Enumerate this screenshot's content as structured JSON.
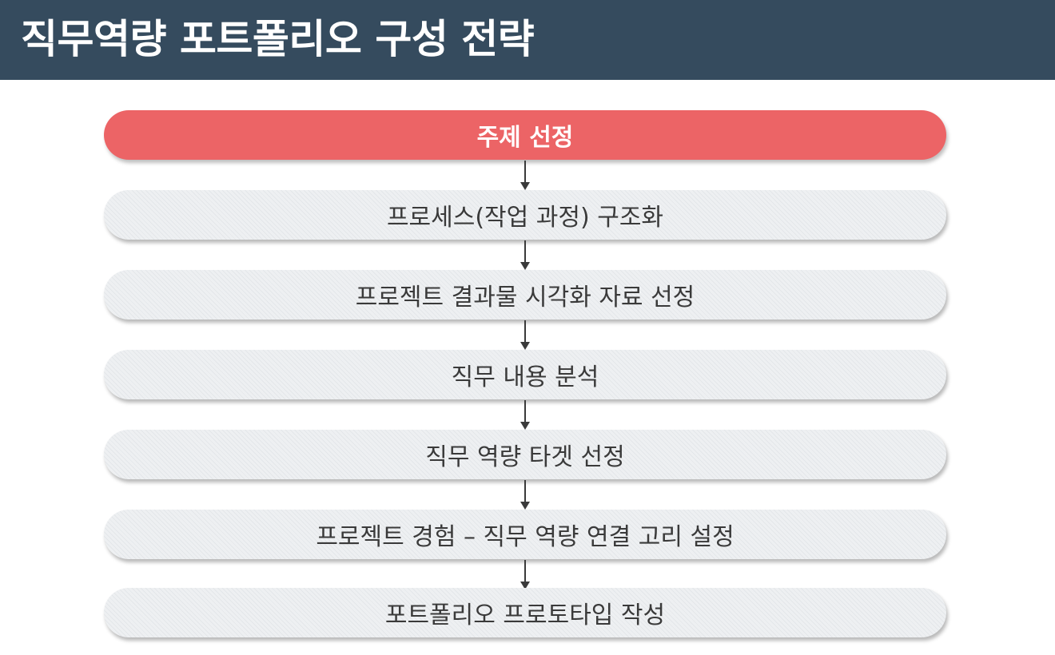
{
  "title": "직무역량 포트폴리오 구성 전략",
  "colors": {
    "title_bar": "#354b5e",
    "primary_step": "#ec6466",
    "step_background": "#eef0f2",
    "text": "#3a3a3a"
  },
  "steps": [
    {
      "label": "주제 선정"
    },
    {
      "label": "프로세스(작업 과정) 구조화"
    },
    {
      "label": "프로젝트 결과물 시각화 자료 선정"
    },
    {
      "label": "직무 내용 분석"
    },
    {
      "label": "직무 역량 타겟 선정"
    },
    {
      "label": "프로젝트 경험 – 직무 역량 연결 고리 설정"
    },
    {
      "label": "포트폴리오 프로토타입 작성"
    }
  ]
}
